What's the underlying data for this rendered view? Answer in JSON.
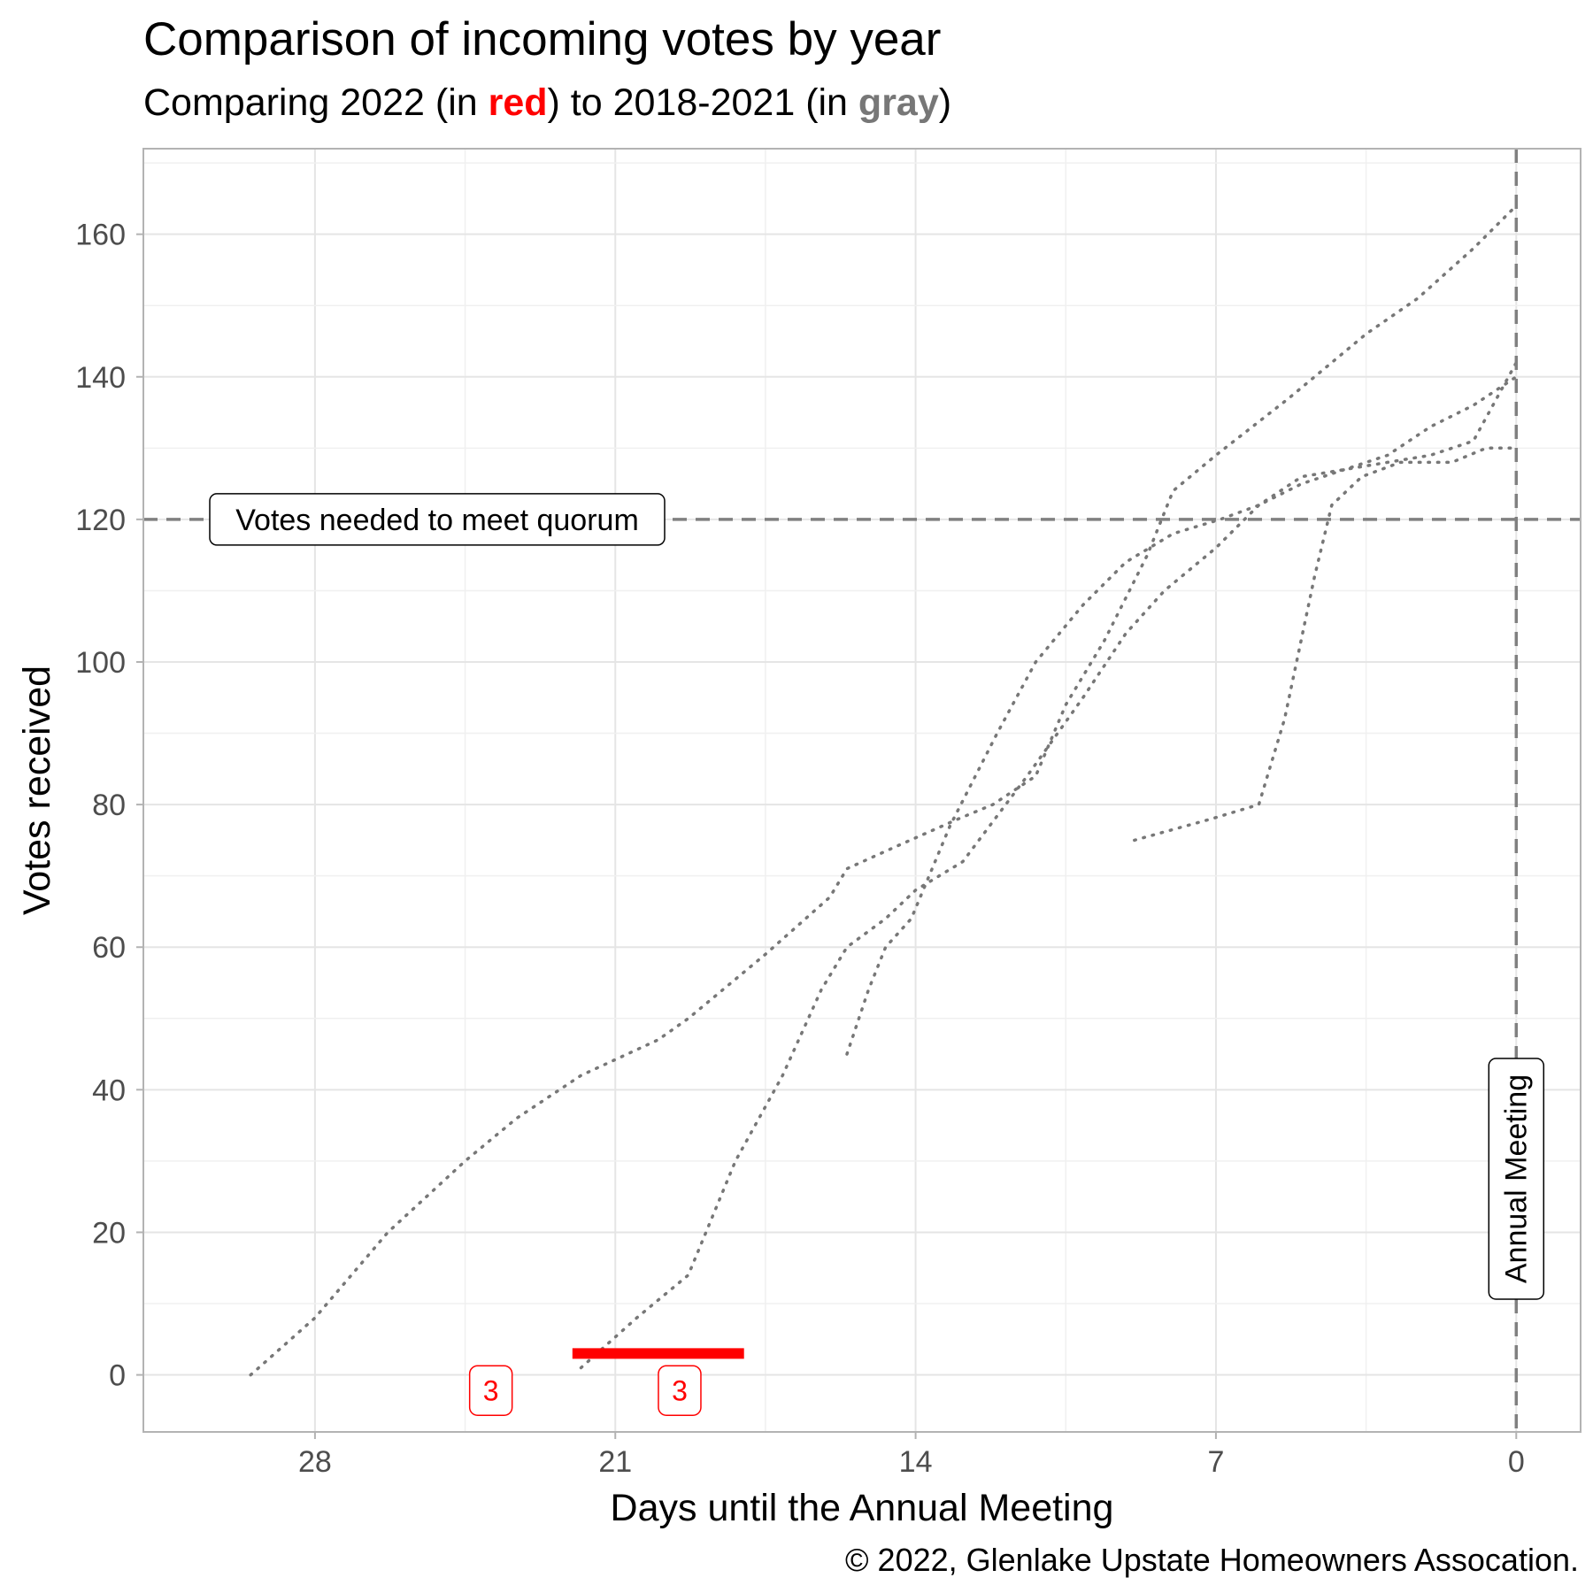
{
  "title": "Comparison of incoming votes by year",
  "subtitle": {
    "prefix": "Comparing 2022 (in ",
    "red_word": "red",
    "middle": ") to 2018-2021 (in ",
    "gray_word": "gray",
    "suffix": ")"
  },
  "caption": "© 2022, Glenlake Upstate Homeowners Assocation.",
  "colors": {
    "current_year": "#ff0000",
    "prior_years": "#777777",
    "reference_lines": "#808080",
    "grid": "#e5e5e5"
  },
  "chart_data": {
    "type": "line",
    "title": "Comparison of incoming votes by year",
    "subtitle": "Comparing 2022 (in red) to 2018-2021 (in gray)",
    "xlabel": "Days until the Annual Meeting",
    "ylabel": "Votes received",
    "x_reversed": true,
    "xlim": [
      32,
      -1.5
    ],
    "ylim": [
      -8,
      172
    ],
    "x_ticks": [
      28,
      21,
      14,
      7,
      0
    ],
    "y_ticks": [
      0,
      20,
      40,
      60,
      80,
      100,
      120,
      140,
      160
    ],
    "grid": true,
    "series": [
      {
        "year_group": "prior",
        "style": "dotted",
        "points": [
          [
            29.5,
            0
          ],
          [
            28,
            8
          ],
          [
            26.3,
            20
          ],
          [
            24.5,
            30
          ],
          [
            23.3,
            36
          ],
          [
            21.8,
            42
          ],
          [
            20,
            47
          ],
          [
            19.3,
            50
          ],
          [
            18.9,
            52
          ],
          [
            17.5,
            59
          ],
          [
            16,
            67
          ],
          [
            15.6,
            71
          ],
          [
            14.5,
            74
          ],
          [
            13,
            78
          ],
          [
            12.2,
            80
          ],
          [
            11.2,
            84
          ],
          [
            10.5,
            94
          ],
          [
            9.6,
            103
          ],
          [
            8.6,
            115
          ],
          [
            8,
            124
          ],
          [
            7,
            129
          ],
          [
            5.3,
            137
          ],
          [
            3.5,
            146
          ],
          [
            2.3,
            151
          ],
          [
            1,
            158
          ],
          [
            0,
            164
          ]
        ]
      },
      {
        "year_group": "prior",
        "style": "dotted",
        "points": [
          [
            21.8,
            1
          ],
          [
            20.5,
            8
          ],
          [
            19.3,
            14
          ],
          [
            18.2,
            30
          ],
          [
            17.1,
            42
          ],
          [
            16.2,
            54
          ],
          [
            15.6,
            60
          ],
          [
            14.7,
            64
          ],
          [
            14,
            68
          ],
          [
            12.9,
            72
          ],
          [
            11.4,
            84
          ],
          [
            10.1,
            95
          ],
          [
            9.1,
            104
          ],
          [
            8.2,
            110
          ],
          [
            7,
            116
          ],
          [
            6,
            122
          ],
          [
            5,
            126
          ],
          [
            4,
            127
          ],
          [
            3,
            128
          ],
          [
            2,
            129
          ],
          [
            1,
            131
          ],
          [
            0,
            142
          ]
        ]
      },
      {
        "year_group": "prior",
        "style": "dotted",
        "points": [
          [
            15.6,
            45
          ],
          [
            15.1,
            54
          ],
          [
            14.7,
            60
          ],
          [
            14.1,
            64
          ],
          [
            13.2,
            77
          ],
          [
            12.1,
            90
          ],
          [
            11.2,
            100
          ],
          [
            10.1,
            108
          ],
          [
            9.1,
            114
          ],
          [
            8,
            118
          ],
          [
            6.9,
            120
          ],
          [
            6,
            122
          ],
          [
            5,
            125
          ],
          [
            4,
            127
          ],
          [
            3,
            129
          ],
          [
            2,
            133
          ],
          [
            1,
            136
          ],
          [
            0,
            140
          ]
        ]
      },
      {
        "year_group": "prior",
        "style": "dotted",
        "points": [
          [
            8.9,
            75
          ],
          [
            7.1,
            78
          ],
          [
            6,
            80
          ],
          [
            5.4,
            92
          ],
          [
            4.7,
            112
          ],
          [
            4.3,
            122
          ],
          [
            3.6,
            126
          ],
          [
            2.7,
            128
          ],
          [
            1.5,
            128
          ],
          [
            0.7,
            130
          ],
          [
            0,
            130
          ]
        ]
      },
      {
        "year_group": "2022",
        "style": "solid",
        "points": [
          [
            22,
            3
          ],
          [
            18,
            3
          ]
        ]
      }
    ],
    "reference_lines": [
      {
        "orientation": "horizontal",
        "value": 120,
        "label": "Votes needed to meet quorum"
      },
      {
        "orientation": "vertical",
        "value": 0,
        "label": "Annual Meeting"
      }
    ],
    "point_labels": [
      {
        "x": 23.9,
        "y": -2.2,
        "label": "3"
      },
      {
        "x": 19.5,
        "y": -2.2,
        "label": "3"
      }
    ]
  }
}
